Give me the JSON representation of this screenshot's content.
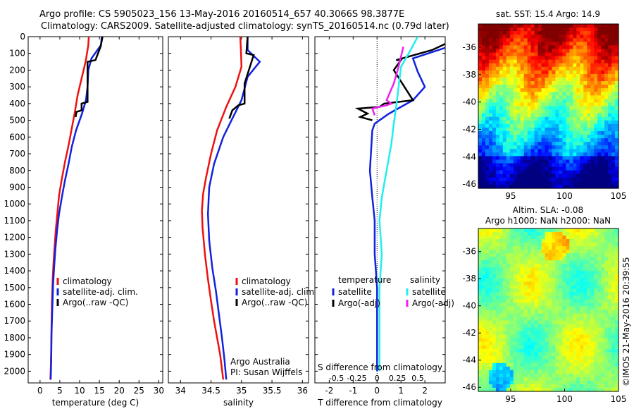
{
  "header": {
    "line1": "Argo profile: CS 5905023_156 13-May-2016 20160514_657 40.3066S 98.3877E",
    "line2": "Climatology: CARS2009. Satellite-adjusted climatology: synTS_20160514.nc (0.79d later)"
  },
  "colors": {
    "climatology": "#ee1111",
    "satellite": "#1122dd",
    "argo": "#000000",
    "salinity_sat": "#22eeee",
    "salinity_argo": "#ee22ee"
  },
  "chart_data": [
    {
      "type": "line",
      "xlabel": "temperature (deg C)",
      "xticks": [
        0,
        5,
        10,
        15,
        20,
        25,
        30
      ],
      "xlim": [
        -3,
        31
      ],
      "yticks": [
        0,
        100,
        200,
        300,
        400,
        500,
        600,
        700,
        800,
        900,
        1000,
        1100,
        1200,
        1300,
        1400,
        1500,
        1600,
        1700,
        1800,
        1900,
        2000
      ],
      "ylim": [
        0,
        2070
      ],
      "y_inverted": true,
      "legend": [
        "climatology",
        "satellite-adj. clim.",
        "Argo(..raw -QC)"
      ],
      "series": [
        {
          "name": "climatology",
          "x": [
            12.3,
            12.2,
            11.5,
            10.5,
            9.5,
            8.8,
            8.0,
            7.2,
            6.3,
            5.5,
            4.8,
            4.4,
            4.0,
            3.7,
            3.4,
            3.2,
            3.0,
            2.9,
            2.8,
            2.7,
            2.6
          ],
          "y": [
            0,
            50,
            150,
            250,
            350,
            450,
            550,
            650,
            750,
            850,
            950,
            1050,
            1150,
            1250,
            1350,
            1450,
            1600,
            1750,
            1900,
            2000,
            2050
          ]
        },
        {
          "name": "satellite-adj. clim.",
          "x": [
            15.6,
            15.4,
            13.0,
            12.2,
            12.0,
            11.6,
            10.6,
            9.1,
            8.0,
            7.2,
            6.3,
            5.5,
            4.8,
            4.3,
            3.9,
            3.6,
            3.3,
            3.1,
            2.9,
            2.8,
            2.7
          ],
          "y": [
            0,
            50,
            130,
            200,
            300,
            380,
            460,
            560,
            660,
            760,
            860,
            960,
            1060,
            1160,
            1260,
            1360,
            1480,
            1620,
            1780,
            1950,
            2050
          ]
        },
        {
          "name": "Argo(..raw -QC)",
          "x": [
            15.8,
            15.3,
            14.0,
            12.0,
            12.0,
            10.5,
            10.5,
            9.2,
            9.0
          ],
          "y": [
            0,
            60,
            140,
            150,
            390,
            400,
            440,
            450,
            480
          ]
        }
      ],
      "annotations": []
    },
    {
      "type": "line",
      "xlabel": "salinity",
      "xticks": [
        34,
        34.5,
        35,
        35.5,
        36
      ],
      "xlim": [
        33.8,
        36.1
      ],
      "ylim": [
        0,
        2070
      ],
      "y_inverted": true,
      "legend": [
        "climatology",
        "satellite-adj. clim.",
        "Argo(..raw -QC)"
      ],
      "series": [
        {
          "name": "climatology",
          "x": [
            34.98,
            34.99,
            35.0,
            34.9,
            34.75,
            34.6,
            34.5,
            34.42,
            34.37,
            34.35,
            34.36,
            34.4,
            34.45,
            34.5,
            34.55,
            34.6,
            34.65,
            34.7
          ],
          "y": [
            0,
            80,
            180,
            300,
            420,
            560,
            700,
            840,
            940,
            1040,
            1140,
            1300,
            1450,
            1580,
            1700,
            1800,
            1900,
            2050
          ]
        },
        {
          "name": "satellite-adj. clim.",
          "x": [
            35.1,
            35.1,
            35.3,
            35.1,
            35.0,
            34.85,
            34.7,
            34.55,
            34.47,
            34.45,
            34.47,
            34.52,
            34.58,
            34.63,
            34.68,
            34.72,
            34.75
          ],
          "y": [
            0,
            80,
            150,
            240,
            380,
            490,
            600,
            760,
            900,
            1060,
            1220,
            1380,
            1520,
            1660,
            1800,
            1930,
            2050
          ]
        },
        {
          "name": "Argo(..raw -QC)",
          "x": [
            35.1,
            35.08,
            35.2,
            35.05,
            35.05,
            34.95,
            34.85,
            34.8
          ],
          "y": [
            0,
            100,
            110,
            280,
            400,
            410,
            440,
            490
          ]
        }
      ],
      "annotations": [
        "Argo Australia",
        "PI: Susan Wijffels"
      ]
    },
    {
      "type": "line",
      "xlabel": "T difference from climatology",
      "xlabel_top": "S difference from climatology",
      "xticks": [
        -2,
        -1,
        0,
        1,
        2
      ],
      "xlim": [
        -2.6,
        2.85
      ],
      "xticks_top": [
        {
          "label": "-0.5",
          "x": -1.7
        },
        {
          "label": "-0.25",
          "x": -0.85
        },
        {
          "label": "0",
          "x": 0
        },
        {
          "label": "0.25",
          "x": 0.85
        },
        {
          "label": "0.5",
          "x": 1.7
        }
      ],
      "ylim": [
        0,
        2070
      ],
      "y_inverted": true,
      "legend_titles": [
        "temperature",
        "salinity"
      ],
      "legend": [
        "satellite",
        "Argo(-adj)",
        "satellite",
        "Argo(-adj)"
      ],
      "series": [
        {
          "name": "temperature satellite",
          "x": [
            3.3,
            3.2,
            1.5,
            1.7,
            2.0,
            1.5,
            0.5,
            -0.1,
            -0.2,
            -0.3,
            -0.2,
            -0.1,
            -0.1,
            0.0,
            0.0,
            0.0
          ],
          "y": [
            0,
            50,
            130,
            210,
            300,
            380,
            460,
            520,
            560,
            800,
            960,
            1100,
            1300,
            1500,
            1800,
            2000
          ]
        },
        {
          "name": "temperature Argo(-adj)",
          "x": [
            3.5,
            2.3,
            0.8,
            1.0,
            0.7,
            1.5,
            0.3,
            0.1,
            -0.8,
            -0.4,
            -0.7,
            -0.2
          ],
          "y": [
            0,
            80,
            140,
            140,
            200,
            380,
            400,
            420,
            430,
            460,
            480,
            500
          ]
        },
        {
          "name": "salinity satellite",
          "x": [
            1.7,
            1.4,
            1.0,
            0.9,
            0.8,
            0.7,
            0.6,
            0.4,
            0.2,
            0.1,
            0.2,
            0.1,
            0.1,
            0.1
          ],
          "y": [
            0,
            80,
            180,
            300,
            420,
            520,
            640,
            800,
            960,
            1100,
            1300,
            1500,
            1800,
            2000
          ]
        },
        {
          "name": "salinity Argo(-adj)",
          "x": [
            1.1,
            1.0,
            0.9,
            0.7,
            0.4,
            0.6,
            0.4,
            -0.2,
            -0.1
          ],
          "y": [
            60,
            120,
            180,
            280,
            380,
            400,
            410,
            430,
            470
          ]
        }
      ],
      "annotations": []
    }
  ],
  "maps": [
    {
      "title": "sat. SST: 15.4  Argo: 14.9",
      "type": "heatmap",
      "xticks": [
        95,
        100,
        105
      ],
      "yticks": [
        -36,
        -38,
        -40,
        -42,
        -44,
        -46
      ],
      "xlim": [
        92,
        105
      ],
      "ylim": [
        -46.3,
        -34.3
      ],
      "colormap": "jet",
      "value_range": [
        8,
        20
      ]
    },
    {
      "title_line1": "Altim. SLA: -0.08",
      "title_line2": "Argo h1000: NaN  h2000: NaN",
      "type": "heatmap",
      "xticks": [
        95,
        100,
        105
      ],
      "yticks": [
        -36,
        -38,
        -40,
        -42,
        -44,
        -46
      ],
      "xlim": [
        92,
        105
      ],
      "ylim": [
        -46.3,
        -34.3
      ],
      "colormap": "jet"
    }
  ],
  "credit": "©IMOS 21-May-2016 20:39:55"
}
